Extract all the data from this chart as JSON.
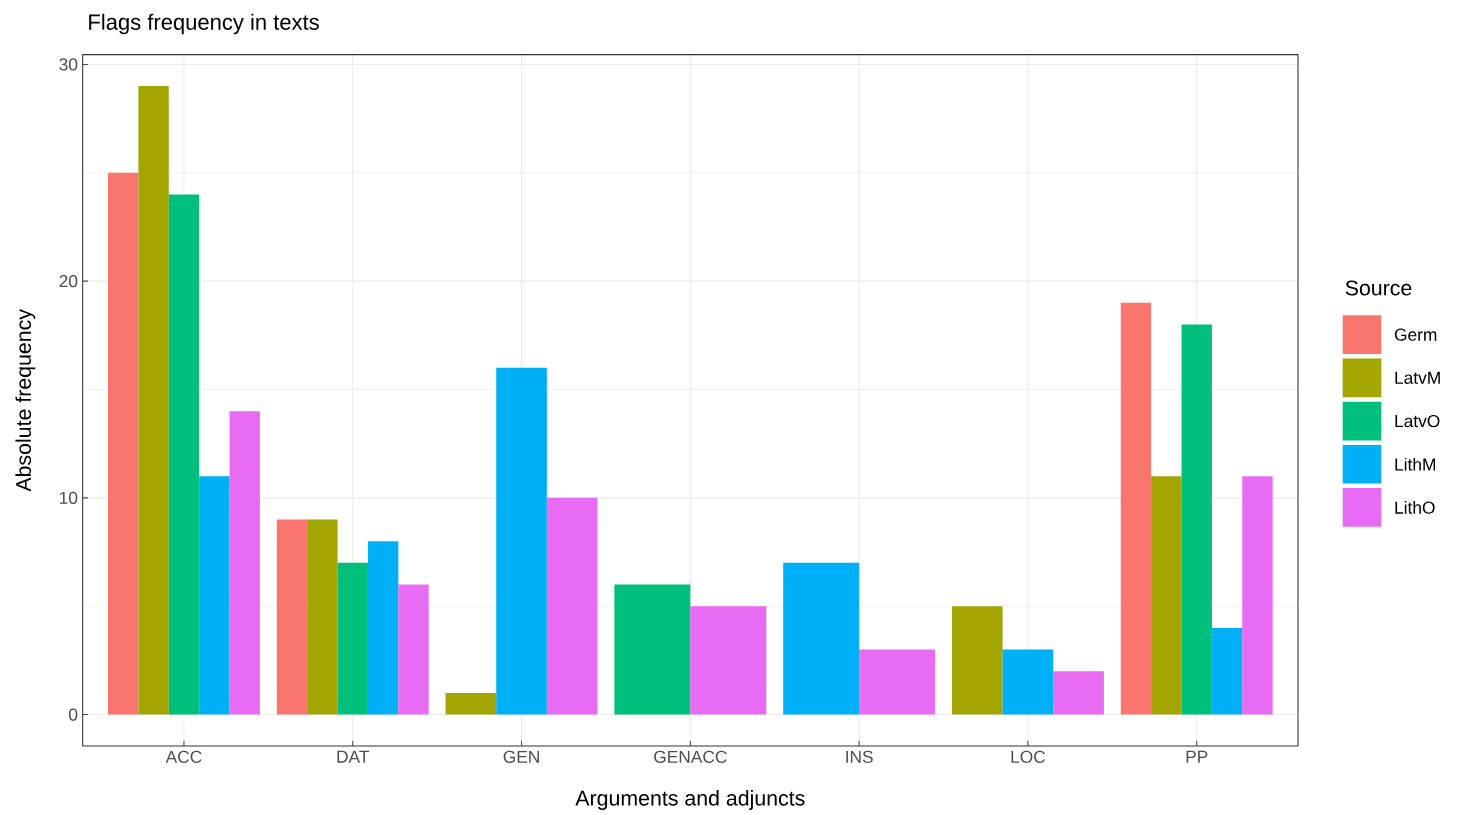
{
  "chart_data": {
    "type": "bar",
    "title": "Flags frequency in texts",
    "xlabel": "Arguments and adjuncts",
    "ylabel": "Absolute frequency",
    "legend_title": "Source",
    "categories": [
      "ACC",
      "DAT",
      "GEN",
      "GENACC",
      "INS",
      "LOC",
      "PP"
    ],
    "series": [
      {
        "name": "Germ",
        "color": "#f8766d",
        "values": [
          25,
          9,
          null,
          null,
          null,
          null,
          19
        ]
      },
      {
        "name": "LatvM",
        "color": "#a3a500",
        "values": [
          29,
          9,
          1,
          null,
          null,
          5,
          11
        ]
      },
      {
        "name": "LatvO",
        "color": "#00bf7d",
        "values": [
          24,
          7,
          null,
          6,
          null,
          null,
          18
        ]
      },
      {
        "name": "LithM",
        "color": "#00b0f6",
        "values": [
          11,
          8,
          16,
          null,
          7,
          3,
          4
        ]
      },
      {
        "name": "LithO",
        "color": "#e76bf3",
        "values": [
          14,
          6,
          10,
          5,
          3,
          2,
          11
        ]
      }
    ],
    "ylim": [
      -1.45,
      30.45
    ],
    "yticks": [
      0,
      10,
      20,
      30
    ],
    "grid": true,
    "legend": "right"
  }
}
